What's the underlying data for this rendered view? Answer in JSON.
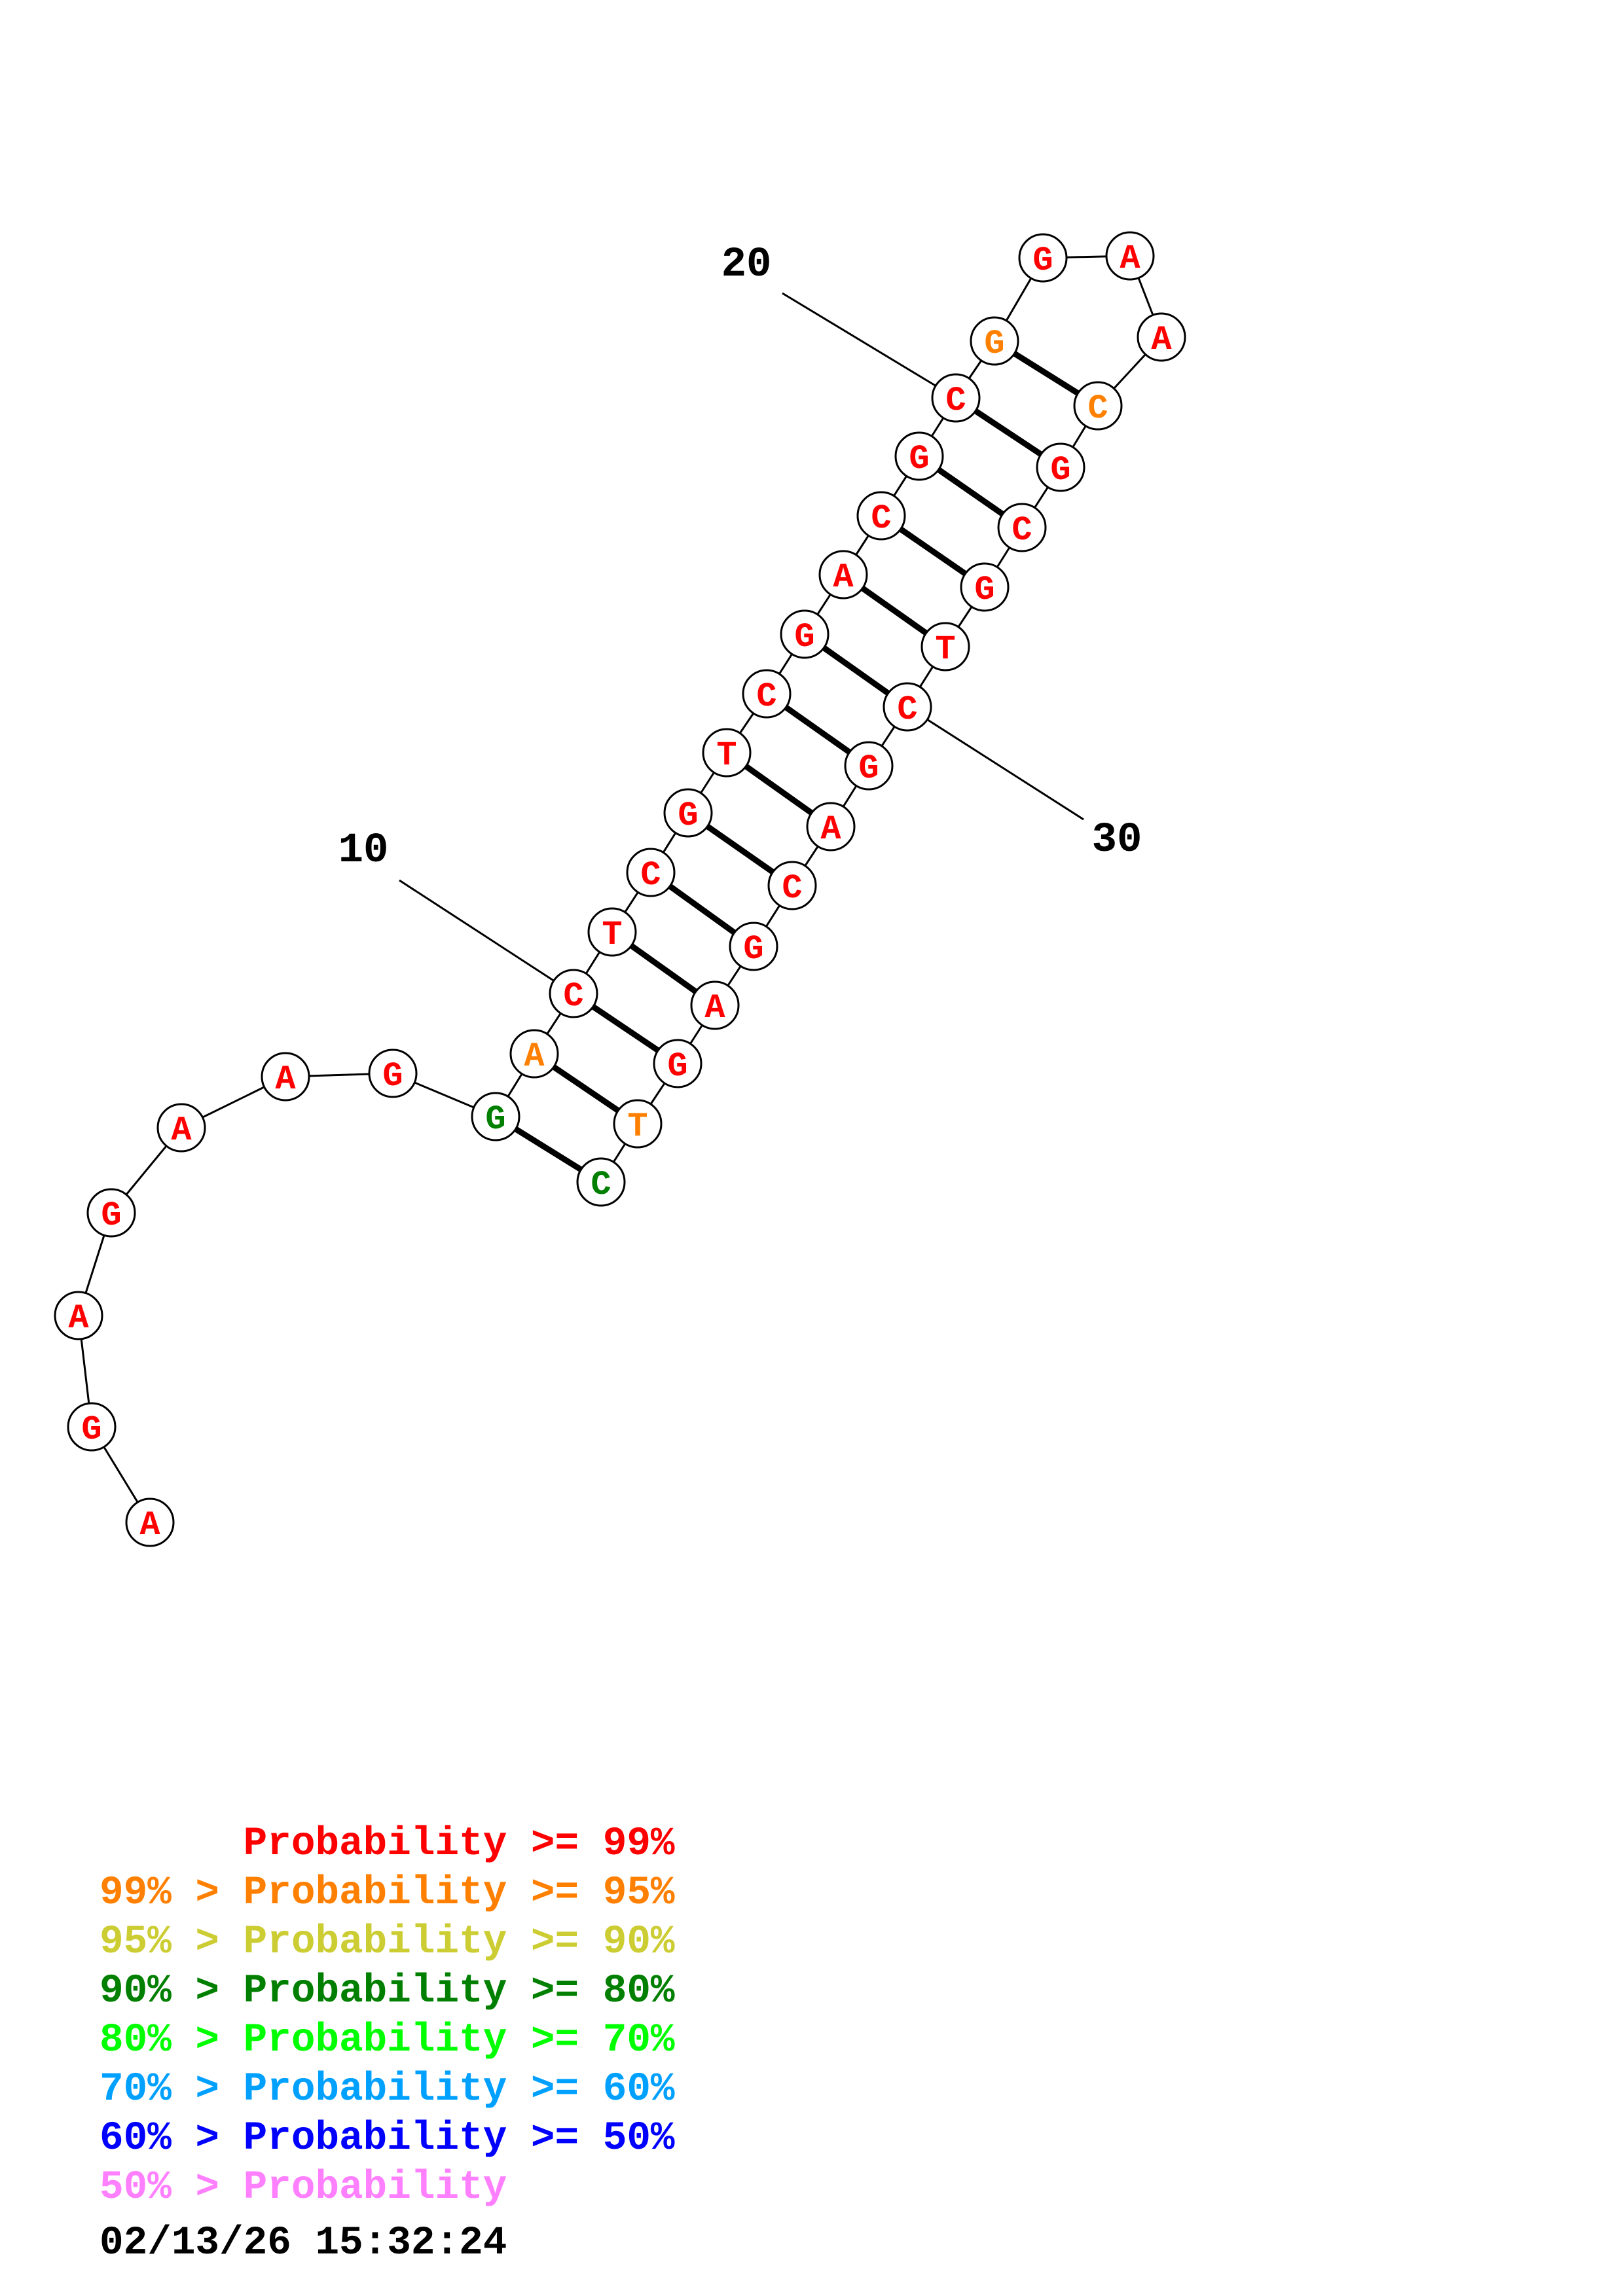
{
  "diagram": {
    "type": "rna-secondary-structure",
    "sequence": "AGAGAAGGACTCGTCGACGCGGAACGCGTCGACGAGTC",
    "bases": [
      {
        "n": 1,
        "letter": "A",
        "color": "#ff0000"
      },
      {
        "n": 2,
        "letter": "G",
        "color": "#ff0000"
      },
      {
        "n": 3,
        "letter": "A",
        "color": "#ff0000"
      },
      {
        "n": 4,
        "letter": "G",
        "color": "#ff0000"
      },
      {
        "n": 5,
        "letter": "A",
        "color": "#ff0000"
      },
      {
        "n": 6,
        "letter": "A",
        "color": "#ff0000"
      },
      {
        "n": 7,
        "letter": "G",
        "color": "#ff0000"
      },
      {
        "n": 8,
        "letter": "G",
        "color": "#007f00"
      },
      {
        "n": 9,
        "letter": "A",
        "color": "#ff8000"
      },
      {
        "n": 10,
        "letter": "C",
        "color": "#ff0000"
      },
      {
        "n": 11,
        "letter": "T",
        "color": "#ff0000"
      },
      {
        "n": 12,
        "letter": "C",
        "color": "#ff0000"
      },
      {
        "n": 13,
        "letter": "G",
        "color": "#ff0000"
      },
      {
        "n": 14,
        "letter": "T",
        "color": "#ff0000"
      },
      {
        "n": 15,
        "letter": "C",
        "color": "#ff0000"
      },
      {
        "n": 16,
        "letter": "G",
        "color": "#ff0000"
      },
      {
        "n": 17,
        "letter": "A",
        "color": "#ff0000"
      },
      {
        "n": 18,
        "letter": "C",
        "color": "#ff0000"
      },
      {
        "n": 19,
        "letter": "G",
        "color": "#ff0000"
      },
      {
        "n": 20,
        "letter": "C",
        "color": "#ff0000"
      },
      {
        "n": 21,
        "letter": "G",
        "color": "#ff8000"
      },
      {
        "n": 22,
        "letter": "G",
        "color": "#ff0000"
      },
      {
        "n": 23,
        "letter": "A",
        "color": "#ff0000"
      },
      {
        "n": 24,
        "letter": "A",
        "color": "#ff0000"
      },
      {
        "n": 25,
        "letter": "C",
        "color": "#ff8000"
      },
      {
        "n": 26,
        "letter": "G",
        "color": "#ff0000"
      },
      {
        "n": 27,
        "letter": "C",
        "color": "#ff0000"
      },
      {
        "n": 28,
        "letter": "G",
        "color": "#ff0000"
      },
      {
        "n": 29,
        "letter": "T",
        "color": "#ff0000"
      },
      {
        "n": 30,
        "letter": "C",
        "color": "#ff0000"
      },
      {
        "n": 31,
        "letter": "G",
        "color": "#ff0000"
      },
      {
        "n": 32,
        "letter": "A",
        "color": "#ff0000"
      },
      {
        "n": 33,
        "letter": "C",
        "color": "#ff0000"
      },
      {
        "n": 34,
        "letter": "G",
        "color": "#ff0000"
      },
      {
        "n": 35,
        "letter": "A",
        "color": "#ff0000"
      },
      {
        "n": 36,
        "letter": "G",
        "color": "#ff0000"
      },
      {
        "n": 37,
        "letter": "T",
        "color": "#ff8000"
      },
      {
        "n": 38,
        "letter": "C",
        "color": "#007f00"
      }
    ],
    "pairs": [
      [
        8,
        38
      ],
      [
        9,
        37
      ],
      [
        10,
        36
      ],
      [
        11,
        35
      ],
      [
        12,
        34
      ],
      [
        13,
        33
      ],
      [
        14,
        32
      ],
      [
        15,
        31
      ],
      [
        16,
        30
      ],
      [
        17,
        29
      ],
      [
        18,
        28
      ],
      [
        19,
        27
      ],
      [
        20,
        26
      ],
      [
        21,
        25
      ]
    ],
    "index_labels": [
      {
        "base": 10,
        "text": "10"
      },
      {
        "base": 20,
        "text": "20"
      },
      {
        "base": 30,
        "text": "30"
      }
    ]
  },
  "legend": {
    "lines": [
      {
        "text": "      Probability >= 99%",
        "color": "#ff0000"
      },
      {
        "text": "99% > Probability >= 95%",
        "color": "#ff8000"
      },
      {
        "text": "95% > Probability >= 90%",
        "color": "#cccc33"
      },
      {
        "text": "90% > Probability >= 80%",
        "color": "#007f00"
      },
      {
        "text": "80% > Probability >= 70%",
        "color": "#00ff00"
      },
      {
        "text": "70% > Probability >= 60%",
        "color": "#00a0ff"
      },
      {
        "text": "60% > Probability >= 50%",
        "color": "#0000ff"
      },
      {
        "text": "50% > Probability",
        "color": "#ff80ff"
      }
    ],
    "timestamp": "02/13/26 15:32:24"
  }
}
